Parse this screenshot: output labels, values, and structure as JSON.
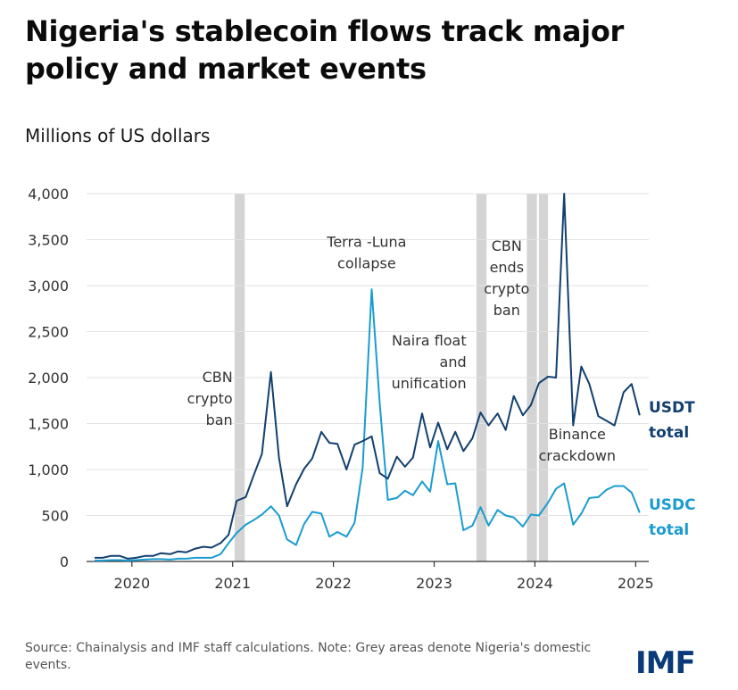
{
  "header": {
    "title": "Nigeria's stablecoin flows track major policy and market events",
    "subtitle": "Millions of US dollars"
  },
  "footer": {
    "source_note": "Source: Chainalysis and IMF staff calculations. Note: Grey areas denote Nigeria's domestic events.",
    "logo_text": "IMF"
  },
  "colors": {
    "usdt": "#12406f",
    "usdc": "#1a9cd0",
    "event_band": "#d4d4d4",
    "axis": "#333333"
  },
  "chart_data": {
    "type": "line",
    "title": "Nigeria's stablecoin flows track major policy and market events",
    "ylabel": "Millions of US dollars",
    "xlim": [
      2019.55,
      2025.13
    ],
    "ylim": [
      0,
      4000
    ],
    "x_ticks": [
      2020,
      2021,
      2022,
      2023,
      2024,
      2025
    ],
    "y_ticks": [
      0,
      500,
      1000,
      1500,
      2000,
      2500,
      3000,
      3500,
      4000
    ],
    "y_tick_labels": [
      "0",
      "500",
      "1,000",
      "1,500",
      "2,000",
      "2,500",
      "3,000",
      "3,500",
      "4,000"
    ],
    "grid": true,
    "event_bands": [
      {
        "start": 2021.02,
        "end": 2021.12
      },
      {
        "start": 2023.42,
        "end": 2023.52
      },
      {
        "start": 2023.92,
        "end": 2024.02
      },
      {
        "start": 2024.04,
        "end": 2024.13
      }
    ],
    "annotations": [
      {
        "text": "CBN\ncrypto\nban",
        "x": 2021.0,
        "y": 1950,
        "anchor": "end"
      },
      {
        "text": "Terra -Luna\ncollapse",
        "x": 2022.33,
        "y": 3420,
        "anchor": "middle"
      },
      {
        "text": "Naira float\nand\nunification",
        "x": 2023.32,
        "y": 2350,
        "anchor": "end"
      },
      {
        "text": "CBN\nends\ncrypto\nban",
        "x": 2023.72,
        "y": 3380,
        "anchor": "middle"
      },
      {
        "text": "Binance\ncrackdown",
        "x": 2024.42,
        "y": 1330,
        "anchor": "middle"
      }
    ],
    "series": [
      {
        "name": "USDT total",
        "label_lines": [
          "USDT",
          "total"
        ],
        "x": [
          2019.63,
          2019.71,
          2019.79,
          2019.88,
          2019.96,
          2020.04,
          2020.13,
          2020.21,
          2020.29,
          2020.38,
          2020.46,
          2020.54,
          2020.63,
          2020.71,
          2020.79,
          2020.88,
          2020.96,
          2021.04,
          2021.13,
          2021.21,
          2021.29,
          2021.38,
          2021.46,
          2021.54,
          2021.63,
          2021.71,
          2021.79,
          2021.88,
          2021.96,
          2022.04,
          2022.13,
          2022.21,
          2022.29,
          2022.38,
          2022.46,
          2022.54,
          2022.63,
          2022.71,
          2022.79,
          2022.88,
          2022.96,
          2023.04,
          2023.13,
          2023.21,
          2023.29,
          2023.38,
          2023.46,
          2023.54,
          2023.63,
          2023.71,
          2023.79,
          2023.88,
          2023.96,
          2024.04,
          2024.13,
          2024.21,
          2024.29,
          2024.38,
          2024.46,
          2024.54,
          2024.63,
          2024.71,
          2024.79,
          2024.88,
          2024.96,
          2025.04
        ],
        "values": [
          40,
          40,
          60,
          60,
          30,
          40,
          60,
          60,
          90,
          80,
          110,
          100,
          140,
          160,
          150,
          200,
          290,
          660,
          700,
          940,
          1170,
          2060,
          1130,
          600,
          840,
          1010,
          1120,
          1410,
          1290,
          1280,
          1000,
          1270,
          1310,
          1360,
          960,
          900,
          1140,
          1030,
          1130,
          1610,
          1240,
          1510,
          1220,
          1410,
          1200,
          1340,
          1620,
          1480,
          1610,
          1430,
          1800,
          1590,
          1700,
          1940,
          2010,
          2000,
          4000,
          1480,
          2120,
          1930,
          1580,
          1530,
          1480,
          1840,
          1930,
          1590
        ]
      },
      {
        "name": "USDC total",
        "label_lines": [
          "USDC",
          "total"
        ],
        "x": [
          2019.63,
          2019.71,
          2019.79,
          2019.88,
          2019.96,
          2020.04,
          2020.13,
          2020.21,
          2020.29,
          2020.38,
          2020.46,
          2020.54,
          2020.63,
          2020.71,
          2020.79,
          2020.88,
          2020.96,
          2021.04,
          2021.13,
          2021.21,
          2021.29,
          2021.38,
          2021.46,
          2021.54,
          2021.63,
          2021.71,
          2021.79,
          2021.88,
          2021.96,
          2022.04,
          2022.13,
          2022.21,
          2022.29,
          2022.38,
          2022.46,
          2022.54,
          2022.63,
          2022.71,
          2022.79,
          2022.88,
          2022.96,
          2023.04,
          2023.13,
          2023.21,
          2023.29,
          2023.38,
          2023.46,
          2023.54,
          2023.63,
          2023.71,
          2023.79,
          2023.88,
          2023.96,
          2024.04,
          2024.13,
          2024.21,
          2024.29,
          2024.38,
          2024.46,
          2024.54,
          2024.63,
          2024.71,
          2024.79,
          2024.88,
          2024.96,
          2025.04
        ],
        "values": [
          10,
          10,
          15,
          15,
          10,
          15,
          20,
          25,
          25,
          20,
          30,
          30,
          40,
          40,
          40,
          80,
          200,
          310,
          400,
          450,
          510,
          600,
          500,
          240,
          180,
          410,
          540,
          520,
          270,
          320,
          270,
          420,
          1020,
          2960,
          1720,
          670,
          690,
          770,
          720,
          870,
          760,
          1310,
          840,
          850,
          340,
          390,
          590,
          390,
          560,
          500,
          480,
          380,
          510,
          500,
          640,
          790,
          850,
          400,
          520,
          690,
          700,
          780,
          820,
          820,
          750,
          530
        ]
      }
    ]
  }
}
